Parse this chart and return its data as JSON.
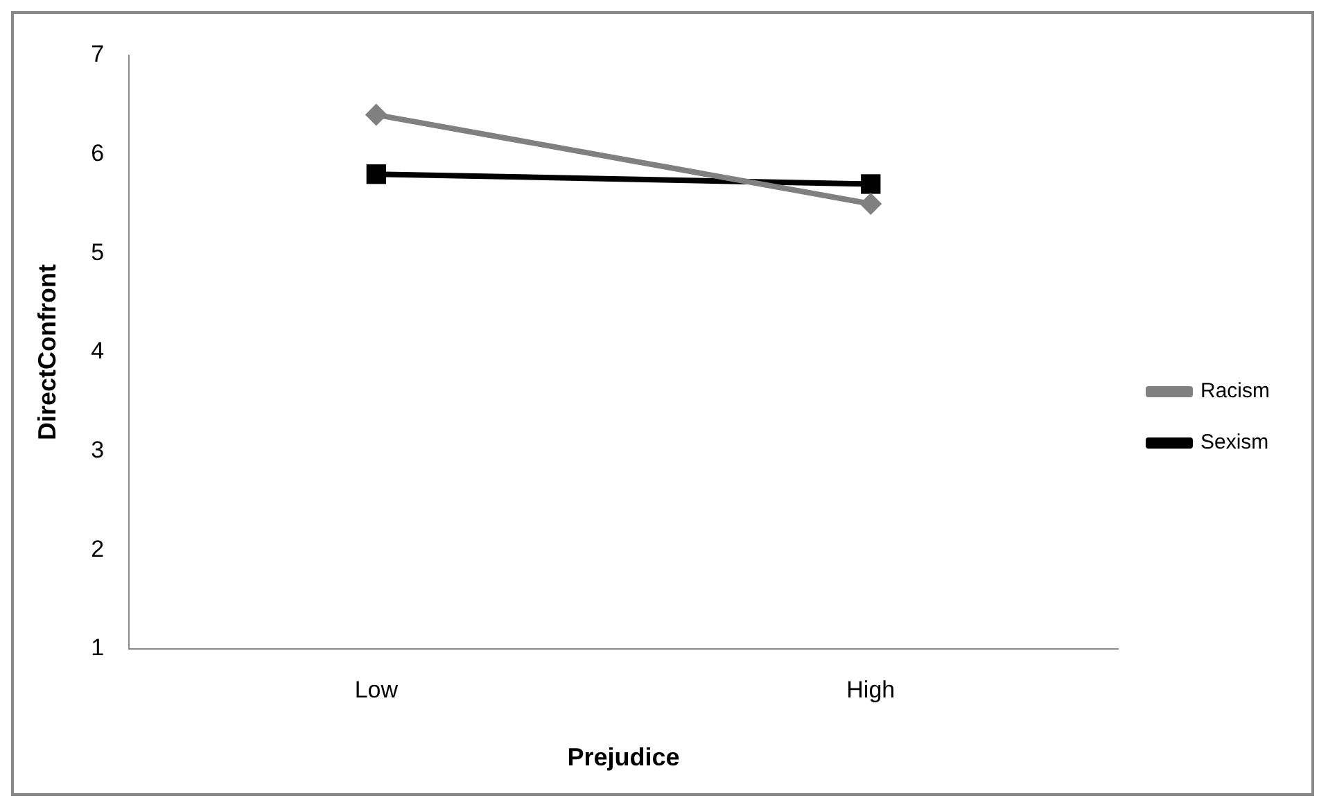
{
  "chart_data": {
    "type": "line",
    "xlabel": "Prejudice",
    "ylabel": "DirectConfront",
    "categories": [
      "Low",
      "High"
    ],
    "series": [
      {
        "name": "Racism",
        "color": "#808080",
        "marker": "diamond",
        "values": [
          6.4,
          5.5
        ]
      },
      {
        "name": "Sexism",
        "color": "#000000",
        "marker": "square",
        "values": [
          5.8,
          5.7
        ]
      }
    ],
    "ylim": [
      1,
      7
    ],
    "yticks": [
      1,
      2,
      3,
      4,
      5,
      6,
      7
    ],
    "grid": false,
    "legend": "right"
  }
}
